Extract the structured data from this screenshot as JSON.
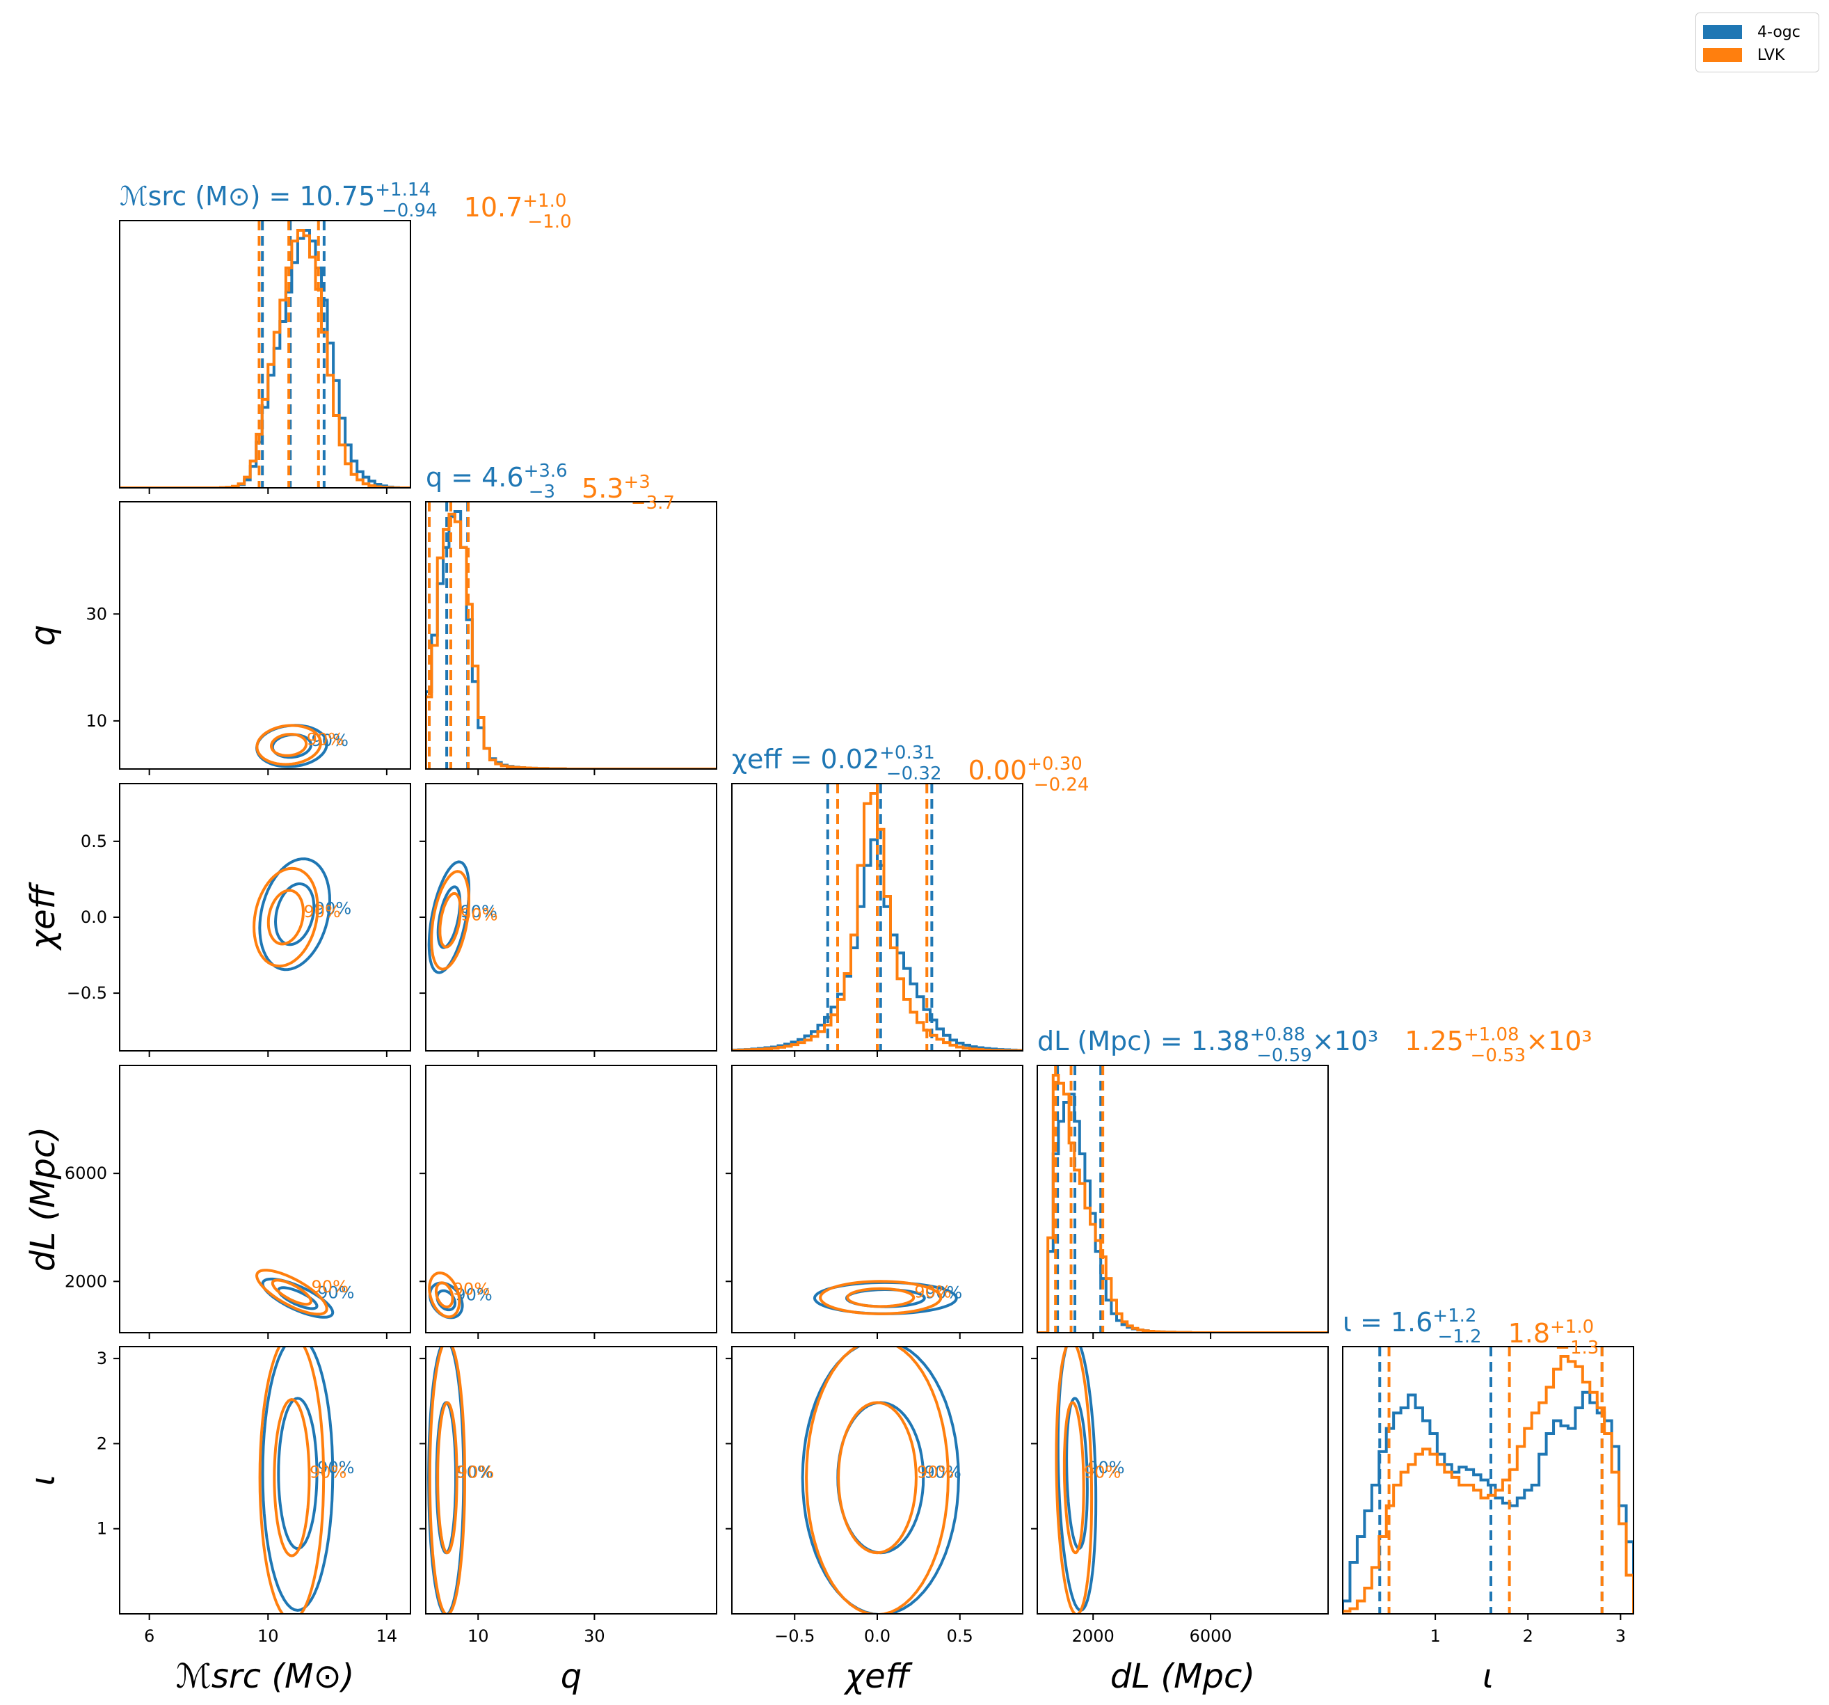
{
  "chart_data": {
    "type": "corner",
    "grid": false,
    "legend_position": "top-right",
    "legend": [
      {
        "name": "4-ogc",
        "color": "#1f77b4"
      },
      {
        "name": "LVK",
        "color": "#ff7f0e"
      }
    ],
    "parameters": [
      {
        "key": "mchirp",
        "label": "ℳsrc (M⊙)",
        "range": [
          5,
          14.8
        ],
        "ticks": [
          6,
          10,
          14
        ],
        "tick_labels": [
          "6",
          "10",
          "14"
        ]
      },
      {
        "key": "q",
        "label": "q",
        "range": [
          1,
          51
        ],
        "ticks": [
          10,
          30
        ],
        "tick_labels": [
          "10",
          "30"
        ]
      },
      {
        "key": "chi_eff",
        "label": "χeff",
        "range": [
          -0.88,
          0.88
        ],
        "ticks": [
          -0.5,
          0.0,
          0.5
        ],
        "tick_labels": [
          "−0.5",
          "0.0",
          "0.5"
        ]
      },
      {
        "key": "dL",
        "label": "dL (Mpc)",
        "range": [
          100,
          10000
        ],
        "ticks": [
          2000,
          6000
        ],
        "tick_labels": [
          "2000",
          "6000"
        ]
      },
      {
        "key": "iota",
        "label": "ι",
        "range": [
          0,
          3.14
        ],
        "ticks": [
          1,
          2,
          3
        ],
        "tick_labels": [
          "1",
          "2",
          "3"
        ]
      }
    ],
    "titles": [
      {
        "parameter": "mchirp",
        "prefix": "ℳsrc (M⊙) = ",
        "series": [
          {
            "name": "4-ogc",
            "median": "10.75",
            "plus": "+1.14",
            "minus": "−0.94",
            "suffix": ""
          },
          {
            "name": "LVK",
            "median": "10.7",
            "plus": "+1.0",
            "minus": "−1.0",
            "suffix": ""
          }
        ]
      },
      {
        "parameter": "q",
        "prefix": "q = ",
        "series": [
          {
            "name": "4-ogc",
            "median": "4.6",
            "plus": "+3.6",
            "minus": "−3",
            "suffix": ""
          },
          {
            "name": "LVK",
            "median": "5.3",
            "plus": "+3",
            "minus": "−3.7",
            "suffix": ""
          }
        ]
      },
      {
        "parameter": "chi_eff",
        "prefix": "χeff = ",
        "series": [
          {
            "name": "4-ogc",
            "median": "0.02",
            "plus": "+0.31",
            "minus": "−0.32",
            "suffix": ""
          },
          {
            "name": "LVK",
            "median": "0.00",
            "plus": "+0.30",
            "minus": "−0.24",
            "suffix": ""
          }
        ]
      },
      {
        "parameter": "dL",
        "prefix": "dL (Mpc) = ",
        "series": [
          {
            "name": "4-ogc",
            "median": "1.38",
            "plus": "+0.88",
            "minus": "−0.59",
            "suffix": "×10³"
          },
          {
            "name": "LVK",
            "median": "1.25",
            "plus": "+1.08",
            "minus": "−0.53",
            "suffix": "×10³"
          }
        ]
      },
      {
        "parameter": "iota",
        "prefix": "ι = ",
        "series": [
          {
            "name": "4-ogc",
            "median": "1.6",
            "plus": "+1.2",
            "minus": "−1.2",
            "suffix": ""
          },
          {
            "name": "LVK",
            "median": "1.8",
            "plus": "+1.0",
            "minus": "−1.3",
            "suffix": ""
          }
        ]
      }
    ],
    "quantiles": {
      "4-ogc": {
        "mchirp": [
          9.81,
          10.75,
          11.89
        ],
        "q": [
          1.6,
          4.6,
          8.2
        ],
        "chi_eff": [
          -0.3,
          0.02,
          0.33
        ],
        "dL": [
          790,
          1380,
          2260
        ],
        "iota": [
          0.4,
          1.6,
          2.8
        ]
      },
      "LVK": {
        "mchirp": [
          9.7,
          10.7,
          11.7
        ],
        "q": [
          1.6,
          5.3,
          8.3
        ],
        "chi_eff": [
          -0.24,
          0.0,
          0.3
        ],
        "dL": [
          720,
          1250,
          2330
        ],
        "iota": [
          0.5,
          1.8,
          2.8
        ]
      }
    },
    "histograms": {
      "4-ogc": {
        "mchirp": {
          "start": 5,
          "width": 0.2,
          "values": [
            0,
            0,
            0,
            0,
            0,
            0,
            0,
            0,
            0,
            0,
            0,
            0,
            0,
            0,
            0,
            0,
            0,
            0.001,
            0.002,
            0.005,
            0.012,
            0.03,
            0.08,
            0.17,
            0.3,
            0.42,
            0.52,
            0.62,
            0.73,
            0.84,
            0.93,
            0.96,
            0.92,
            0.82,
            0.7,
            0.54,
            0.4,
            0.26,
            0.16,
            0.1,
            0.06,
            0.04,
            0.025,
            0.013,
            0.007,
            0.003,
            0.001,
            0,
            0
          ]
        },
        "q": {
          "start": 1,
          "width": 1,
          "values": [
            0.3,
            0.52,
            0.72,
            0.86,
            0.98,
            1.0,
            0.86,
            0.58,
            0.34,
            0.16,
            0.08,
            0.04,
            0.025,
            0.015,
            0.01,
            0.007,
            0.005,
            0.004,
            0.003,
            0.002,
            0.002,
            0.001,
            0.001,
            0.001,
            0,
            0,
            0,
            0,
            0,
            0,
            0,
            0,
            0,
            0,
            0,
            0,
            0,
            0,
            0,
            0,
            0,
            0,
            0,
            0,
            0,
            0,
            0,
            0,
            0,
            0
          ]
        },
        "chi_eff": {
          "start": -0.88,
          "width": 0.04,
          "values": [
            0.003,
            0.004,
            0.005,
            0.007,
            0.009,
            0.012,
            0.015,
            0.02,
            0.026,
            0.034,
            0.044,
            0.058,
            0.075,
            0.1,
            0.13,
            0.17,
            0.22,
            0.29,
            0.4,
            0.56,
            0.72,
            0.82,
            0.72,
            0.56,
            0.45,
            0.38,
            0.32,
            0.26,
            0.21,
            0.16,
            0.12,
            0.085,
            0.06,
            0.042,
            0.03,
            0.022,
            0.016,
            0.012,
            0.009,
            0.007,
            0.005,
            0.004,
            0.003,
            0.002
          ]
        },
        "dL": {
          "start": 100,
          "width": 180,
          "values": [
            0,
            0,
            0.3,
            0.66,
            0.78,
            0.85,
            0.88,
            0.78,
            0.66,
            0.56,
            0.44,
            0.3,
            0.2,
            0.12,
            0.07,
            0.045,
            0.03,
            0.02,
            0.014,
            0.01,
            0.007,
            0.005,
            0.004,
            0.003,
            0.002,
            0.002,
            0.001,
            0.001,
            0.001,
            0,
            0,
            0,
            0,
            0,
            0,
            0,
            0,
            0,
            0,
            0,
            0,
            0,
            0,
            0,
            0,
            0,
            0,
            0,
            0,
            0,
            0,
            0,
            0,
            0,
            0
          ]
        },
        "iota": {
          "start": 0,
          "width": 0.0785,
          "values": [
            0.05,
            0.2,
            0.3,
            0.4,
            0.5,
            0.63,
            0.72,
            0.78,
            0.8,
            0.85,
            0.8,
            0.75,
            0.7,
            0.62,
            0.58,
            0.55,
            0.57,
            0.56,
            0.54,
            0.52,
            0.5,
            0.45,
            0.43,
            0.42,
            0.45,
            0.48,
            0.5,
            0.62,
            0.7,
            0.75,
            0.73,
            0.72,
            0.8,
            0.86,
            0.82,
            0.78,
            0.75,
            0.65,
            0.42,
            0.28
          ]
        }
      },
      "LVK": {
        "mchirp": {
          "start": 5,
          "width": 0.2,
          "values": [
            0,
            0,
            0,
            0,
            0,
            0,
            0,
            0,
            0,
            0,
            0,
            0,
            0,
            0,
            0,
            0,
            0,
            0.001,
            0.002,
            0.006,
            0.015,
            0.04,
            0.1,
            0.2,
            0.33,
            0.46,
            0.58,
            0.7,
            0.82,
            0.92,
            0.96,
            0.94,
            0.86,
            0.74,
            0.58,
            0.42,
            0.27,
            0.16,
            0.09,
            0.05,
            0.03,
            0.015,
            0.008,
            0.004,
            0.002,
            0.001,
            0,
            0,
            0
          ]
        },
        "q": {
          "start": 1,
          "width": 1,
          "values": [
            0.28,
            0.48,
            0.82,
            0.93,
            0.99,
            0.96,
            0.86,
            0.64,
            0.4,
            0.2,
            0.08,
            0.035,
            0.02,
            0.012,
            0.008,
            0.006,
            0.005,
            0.004,
            0.003,
            0.002,
            0.002,
            0.001,
            0.001,
            0.001,
            0,
            0,
            0,
            0,
            0,
            0,
            0,
            0,
            0,
            0,
            0,
            0,
            0,
            0,
            0,
            0,
            0,
            0,
            0,
            0,
            0,
            0,
            0,
            0,
            0,
            0
          ]
        },
        "chi_eff": {
          "start": -0.88,
          "width": 0.04,
          "values": [
            0.002,
            0.003,
            0.004,
            0.005,
            0.006,
            0.008,
            0.01,
            0.014,
            0.018,
            0.024,
            0.032,
            0.042,
            0.056,
            0.075,
            0.1,
            0.14,
            0.2,
            0.3,
            0.45,
            0.72,
            0.96,
            1.0,
            0.86,
            0.6,
            0.4,
            0.28,
            0.2,
            0.15,
            0.11,
            0.08,
            0.06,
            0.045,
            0.032,
            0.022,
            0.015,
            0.01,
            0.007,
            0.005,
            0.003,
            0.002,
            0.002,
            0.001,
            0.001,
            0.001
          ]
        },
        "dL": {
          "start": 100,
          "width": 180,
          "values": [
            0,
            0,
            0.35,
            0.95,
            0.92,
            0.88,
            0.7,
            0.6,
            0.55,
            0.46,
            0.4,
            0.34,
            0.28,
            0.2,
            0.12,
            0.07,
            0.04,
            0.025,
            0.016,
            0.01,
            0.007,
            0.005,
            0.004,
            0.003,
            0.002,
            0.002,
            0.001,
            0.001,
            0.001,
            0,
            0,
            0,
            0,
            0,
            0,
            0,
            0,
            0,
            0,
            0,
            0,
            0,
            0,
            0,
            0,
            0,
            0,
            0,
            0,
            0,
            0,
            0,
            0,
            0,
            0
          ]
        },
        "iota": {
          "start": 0,
          "width": 0.0785,
          "values": [
            0.01,
            0.02,
            0.05,
            0.1,
            0.18,
            0.3,
            0.42,
            0.5,
            0.55,
            0.58,
            0.62,
            0.64,
            0.62,
            0.58,
            0.55,
            0.53,
            0.5,
            0.5,
            0.48,
            0.45,
            0.46,
            0.48,
            0.52,
            0.56,
            0.65,
            0.72,
            0.78,
            0.82,
            0.88,
            0.95,
            1.0,
            0.98,
            0.96,
            0.9,
            0.86,
            0.8,
            0.7,
            0.55,
            0.35,
            0.15
          ]
        }
      }
    },
    "contours_2d": {
      "mchirp_q": {
        "4-ogc": {
          "mean": [
            10.8,
            5.3
          ],
          "sd": [
            0.55,
            1.8
          ],
          "rho": 0.1
        },
        "LVK": {
          "mean": [
            10.7,
            5.5
          ],
          "sd": [
            0.5,
            1.7
          ],
          "rho": 0.1
        }
      },
      "mchirp_chi_eff": {
        "4-ogc": {
          "mean": [
            10.9,
            0.02
          ],
          "sd": [
            0.55,
            0.17
          ],
          "rho": 0.25
        },
        "LVK": {
          "mean": [
            10.6,
            0.0
          ],
          "sd": [
            0.5,
            0.15
          ],
          "rho": 0.2
        }
      },
      "q_chi_eff": {
        "4-ogc": {
          "mean": [
            5.0,
            0.0
          ],
          "sd": [
            1.6,
            0.17
          ],
          "rho": 0.5
        },
        "LVK": {
          "mean": [
            5.2,
            -0.02
          ],
          "sd": [
            1.5,
            0.15
          ],
          "rho": 0.4
        }
      },
      "mchirp_dL": {
        "4-ogc": {
          "mean": [
            11.0,
            1380
          ],
          "sd": [
            0.55,
            330
          ],
          "rho": -0.75
        },
        "LVK": {
          "mean": [
            10.8,
            1600
          ],
          "sd": [
            0.55,
            380
          ],
          "rho": -0.75
        }
      },
      "q_dL": {
        "4-ogc": {
          "mean": [
            4.5,
            1300
          ],
          "sd": [
            1.3,
            300
          ],
          "rho": -0.3
        },
        "LVK": {
          "mean": [
            4.2,
            1500
          ],
          "sd": [
            1.2,
            380
          ],
          "rho": -0.3
        }
      },
      "chi_eff_dL": {
        "4-ogc": {
          "mean": [
            0.05,
            1380
          ],
          "sd": [
            0.2,
            270
          ],
          "rho": 0
        },
        "LVK": {
          "mean": [
            0.02,
            1400
          ],
          "sd": [
            0.17,
            280
          ],
          "rho": 0
        }
      },
      "mchirp_iota": {
        "4-ogc": {
          "mean": [
            11.0,
            1.65
          ],
          "sd": [
            0.55,
            0.75
          ],
          "rho": 0
        },
        "LVK": {
          "mean": [
            10.8,
            1.6
          ],
          "sd": [
            0.5,
            0.78
          ],
          "rho": 0
        }
      },
      "q_iota": {
        "4-ogc": {
          "mean": [
            4.5,
            1.6
          ],
          "sd": [
            1.4,
            0.75
          ],
          "rho": 0
        },
        "LVK": {
          "mean": [
            4.7,
            1.6
          ],
          "sd": [
            1.4,
            0.75
          ],
          "rho": 0
        }
      },
      "chi_eff_iota": {
        "4-ogc": {
          "mean": [
            0.02,
            1.6
          ],
          "sd": [
            0.22,
            0.75
          ],
          "rho": 0
        },
        "LVK": {
          "mean": [
            0.0,
            1.6
          ],
          "sd": [
            0.2,
            0.75
          ],
          "rho": 0
        }
      },
      "dL_iota": {
        "4-ogc": {
          "mean": [
            1450,
            1.65
          ],
          "sd": [
            300,
            0.75
          ],
          "rho": -0.2
        },
        "LVK": {
          "mean": [
            1350,
            1.6
          ],
          "sd": [
            280,
            0.75
          ],
          "rho": -0.15
        }
      }
    },
    "contour_levels": [
      "50%",
      "90%"
    ]
  }
}
